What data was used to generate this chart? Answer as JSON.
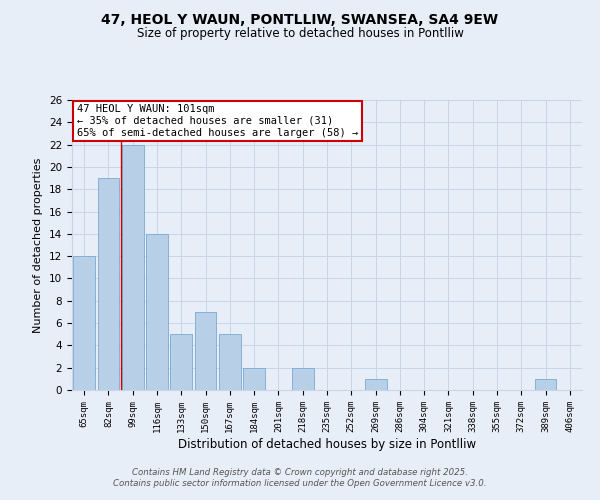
{
  "title1": "47, HEOL Y WAUN, PONTLLIW, SWANSEA, SA4 9EW",
  "title2": "Size of property relative to detached houses in Pontlliw",
  "xlabel": "Distribution of detached houses by size in Pontlliw",
  "ylabel": "Number of detached properties",
  "categories": [
    "65sqm",
    "82sqm",
    "99sqm",
    "116sqm",
    "133sqm",
    "150sqm",
    "167sqm",
    "184sqm",
    "201sqm",
    "218sqm",
    "235sqm",
    "252sqm",
    "269sqm",
    "286sqm",
    "304sqm",
    "321sqm",
    "338sqm",
    "355sqm",
    "372sqm",
    "389sqm",
    "406sqm"
  ],
  "values": [
    12,
    19,
    22,
    14,
    5,
    7,
    5,
    2,
    0,
    2,
    0,
    0,
    1,
    0,
    0,
    0,
    0,
    0,
    0,
    1,
    0
  ],
  "bar_color": "#b8cfe8",
  "bar_edge_color": "#7aaad0",
  "vline_index": 1,
  "vline_color": "#cc0000",
  "annotation_title": "47 HEOL Y WAUN: 101sqm",
  "annotation_line1": "← 35% of detached houses are smaller (31)",
  "annotation_line2": "65% of semi-detached houses are larger (58) →",
  "annotation_box_facecolor": "#ffffff",
  "annotation_border_color": "#cc0000",
  "ylim": [
    0,
    26
  ],
  "yticks": [
    0,
    2,
    4,
    6,
    8,
    10,
    12,
    14,
    16,
    18,
    20,
    22,
    24,
    26
  ],
  "grid_color": "#c8d4e8",
  "bg_color": "#e8eef8",
  "footer1": "Contains HM Land Registry data © Crown copyright and database right 2025.",
  "footer2": "Contains public sector information licensed under the Open Government Licence v3.0."
}
